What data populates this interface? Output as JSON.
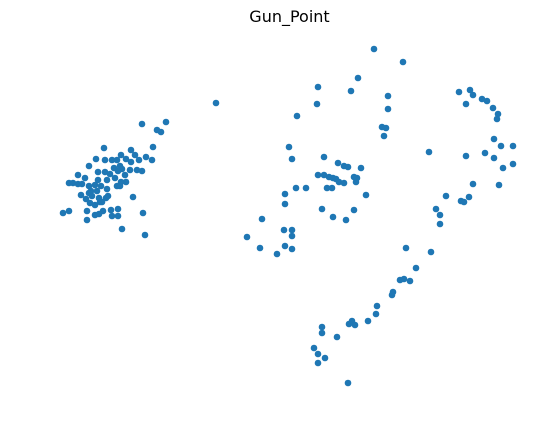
{
  "chart_data": {
    "type": "scatter",
    "title": "Gun_Point",
    "xlabel": "",
    "ylabel": "",
    "axes_visible": false,
    "grid": false,
    "color": "#1f77b4",
    "points": [
      [
        374,
        49
      ],
      [
        403,
        62
      ],
      [
        358,
        78
      ],
      [
        318,
        87
      ],
      [
        351,
        91
      ],
      [
        216,
        103
      ],
      [
        317,
        104
      ],
      [
        388,
        96
      ],
      [
        388,
        109
      ],
      [
        297,
        116
      ],
      [
        166,
        122
      ],
      [
        142,
        124
      ],
      [
        157,
        130
      ],
      [
        161,
        132
      ],
      [
        382,
        127
      ],
      [
        386,
        128
      ],
      [
        384,
        136
      ],
      [
        289,
        147
      ],
      [
        292,
        159
      ],
      [
        153,
        147
      ],
      [
        324,
        157
      ],
      [
        338,
        163
      ],
      [
        344,
        166
      ],
      [
        348,
        167
      ],
      [
        361,
        168
      ],
      [
        318,
        175
      ],
      [
        324,
        175
      ],
      [
        329,
        177
      ],
      [
        333,
        178
      ],
      [
        336,
        179
      ],
      [
        339,
        182
      ],
      [
        344,
        183
      ],
      [
        354,
        177
      ],
      [
        356,
        182
      ],
      [
        357,
        178
      ],
      [
        296,
        188
      ],
      [
        306,
        188
      ],
      [
        332,
        188
      ],
      [
        327,
        188
      ],
      [
        285,
        194
      ],
      [
        285,
        204
      ],
      [
        366,
        195
      ],
      [
        322,
        209
      ],
      [
        354,
        210
      ],
      [
        333,
        217
      ],
      [
        346,
        220
      ],
      [
        262,
        219
      ],
      [
        284,
        230
      ],
      [
        292,
        230
      ],
      [
        292,
        236
      ],
      [
        247,
        237
      ],
      [
        285,
        246
      ],
      [
        260,
        248
      ],
      [
        292,
        249
      ],
      [
        277,
        254
      ],
      [
        459,
        92
      ],
      [
        470,
        90
      ],
      [
        473,
        95
      ],
      [
        466,
        104
      ],
      [
        482,
        99
      ],
      [
        487,
        101
      ],
      [
        493,
        108
      ],
      [
        498,
        114
      ],
      [
        497,
        119
      ],
      [
        429,
        152
      ],
      [
        466,
        156
      ],
      [
        485,
        153
      ],
      [
        494,
        158
      ],
      [
        494,
        139
      ],
      [
        501,
        146
      ],
      [
        513,
        146
      ],
      [
        503,
        168
      ],
      [
        513,
        164
      ],
      [
        473,
        184
      ],
      [
        499,
        185
      ],
      [
        446,
        196
      ],
      [
        469,
        197
      ],
      [
        461,
        201
      ],
      [
        464,
        202
      ],
      [
        436,
        209
      ],
      [
        440,
        215
      ],
      [
        440,
        224
      ],
      [
        406,
        248
      ],
      [
        431,
        252
      ],
      [
        416,
        268
      ],
      [
        400,
        280
      ],
      [
        404,
        279
      ],
      [
        410,
        281
      ],
      [
        393,
        292
      ],
      [
        392,
        295
      ],
      [
        377,
        306
      ],
      [
        376,
        314
      ],
      [
        352,
        321
      ],
      [
        355,
        325
      ],
      [
        368,
        321
      ],
      [
        349,
        324
      ],
      [
        322,
        327
      ],
      [
        322,
        333
      ],
      [
        337,
        337
      ],
      [
        314,
        348
      ],
      [
        318,
        354
      ],
      [
        325,
        358
      ],
      [
        318,
        363
      ],
      [
        348,
        383
      ],
      [
        104,
        148
      ],
      [
        96,
        159
      ],
      [
        105,
        160
      ],
      [
        112,
        160
      ],
      [
        121,
        155
      ],
      [
        131,
        150
      ],
      [
        135,
        155
      ],
      [
        126,
        159
      ],
      [
        146,
        157
      ],
      [
        139,
        160
      ],
      [
        131,
        162
      ],
      [
        152,
        160
      ],
      [
        117,
        160
      ],
      [
        120,
        166
      ],
      [
        89,
        166
      ],
      [
        98,
        172
      ],
      [
        114,
        168
      ],
      [
        122,
        169
      ],
      [
        130,
        170
      ],
      [
        137,
        170
      ],
      [
        142,
        171
      ],
      [
        78,
        175
      ],
      [
        85,
        178
      ],
      [
        105,
        172
      ],
      [
        107,
        180
      ],
      [
        126,
        182
      ],
      [
        120,
        186
      ],
      [
        115,
        178
      ],
      [
        125,
        175
      ],
      [
        69,
        183
      ],
      [
        73,
        183
      ],
      [
        78,
        184
      ],
      [
        82,
        184
      ],
      [
        89,
        186
      ],
      [
        91,
        191
      ],
      [
        95,
        185
      ],
      [
        101,
        186
      ],
      [
        107,
        189
      ],
      [
        97,
        191
      ],
      [
        89,
        193
      ],
      [
        86,
        199
      ],
      [
        99,
        198
      ],
      [
        90,
        203
      ],
      [
        95,
        205
      ],
      [
        106,
        198
      ],
      [
        108,
        196
      ],
      [
        117,
        186
      ],
      [
        81,
        195
      ],
      [
        121,
        182
      ],
      [
        133,
        197
      ],
      [
        102,
        202
      ],
      [
        103,
        211
      ],
      [
        95,
        215
      ],
      [
        99,
        214
      ],
      [
        111,
        210
      ],
      [
        118,
        209
      ],
      [
        118,
        216
      ],
      [
        112,
        216
      ],
      [
        87,
        211
      ],
      [
        87,
        220
      ],
      [
        63,
        213
      ],
      [
        69,
        211
      ],
      [
        143,
        213
      ],
      [
        122,
        229
      ],
      [
        145,
        235
      ],
      [
        92,
        196
      ],
      [
        98,
        180
      ],
      [
        100,
        202
      ],
      [
        118,
        171
      ],
      [
        110,
        174
      ]
    ]
  }
}
